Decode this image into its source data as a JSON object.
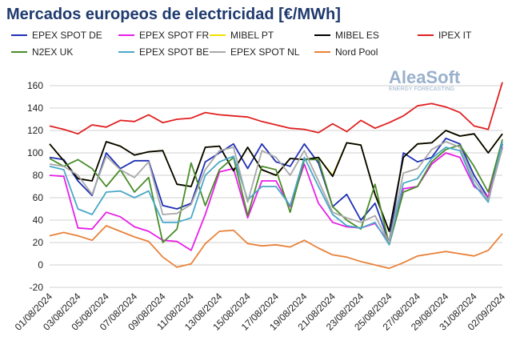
{
  "chart_data": {
    "type": "line",
    "title": "Mercados europeos de electricidad [€/MWh]",
    "logo": {
      "name": "AleaSoft",
      "tagline": "ENERGY FORECASTING"
    },
    "categories": [
      "01/08/2024",
      null,
      "03/08/2024",
      null,
      "05/08/2024",
      null,
      "07/08/2024",
      null,
      "09/08/2024",
      null,
      "11/08/2024",
      null,
      "13/08/2024",
      null,
      "15/08/2024",
      null,
      "17/08/2024",
      null,
      "19/08/2024",
      null,
      "21/08/2024",
      null,
      "23/08/2024",
      null,
      "25/08/2024",
      null,
      "27/08/2024",
      null,
      "29/08/2024",
      null,
      "31/08/2024",
      null,
      "02/09/2024"
    ],
    "ylim": [
      -20,
      170
    ],
    "yticks": [
      -20,
      0,
      20,
      40,
      60,
      80,
      100,
      120,
      140,
      160
    ],
    "grid": true,
    "series": [
      {
        "name": "EPEX SPOT DE",
        "color": "#1f2fb4",
        "values": [
          96,
          94,
          75,
          62,
          100,
          86,
          93,
          93,
          53,
          50,
          55,
          92,
          100,
          108,
          86,
          108,
          92,
          88,
          108,
          91,
          52,
          63,
          40,
          55,
          20,
          100,
          92,
          96,
          113,
          108,
          80,
          60,
          108
        ]
      },
      {
        "name": "EPEX SPOT FR",
        "color": "#e81ee8",
        "values": [
          80,
          79,
          33,
          32,
          47,
          43,
          34,
          30,
          22,
          21,
          13,
          45,
          83,
          86,
          42,
          75,
          75,
          52,
          90,
          55,
          38,
          34,
          33,
          37,
          20,
          68,
          70,
          90,
          100,
          96,
          70,
          61,
          105
        ]
      },
      {
        "name": "MIBEL PT",
        "color": "#f0e000",
        "values": [
          108,
          93,
          77,
          75,
          110,
          106,
          98,
          101,
          102,
          72,
          70,
          105,
          106,
          84,
          105,
          85,
          80,
          95,
          94,
          96,
          80,
          109,
          107,
          63,
          30,
          96,
          108,
          109,
          120,
          115,
          117,
          100,
          117
        ]
      },
      {
        "name": "MIBEL ES",
        "color": "#000000",
        "values": [
          108,
          93,
          77,
          75,
          110,
          106,
          98,
          101,
          102,
          72,
          70,
          105,
          106,
          84,
          105,
          85,
          80,
          95,
          94,
          96,
          79,
          109,
          107,
          63,
          30,
          96,
          108,
          109,
          120,
          115,
          117,
          100,
          117
        ]
      },
      {
        "name": "IPEX IT",
        "color": "#e02020",
        "values": [
          124,
          121,
          117,
          125,
          123,
          129,
          128,
          134,
          127,
          130,
          131,
          136,
          134,
          133,
          132,
          128,
          125,
          122,
          121,
          118,
          126,
          119,
          129,
          122,
          127,
          133,
          142,
          144,
          141,
          136,
          124,
          121,
          163
        ]
      },
      {
        "name": "N2EX UK",
        "color": "#4a8c2a",
        "values": [
          95,
          88,
          94,
          86,
          70,
          85,
          65,
          78,
          20,
          32,
          91,
          53,
          85,
          96,
          44,
          88,
          85,
          47,
          94,
          94,
          52,
          40,
          32,
          72,
          18,
          65,
          70,
          92,
          103,
          107,
          88,
          65,
          112
        ]
      },
      {
        "name": "EPEX SPOT BE",
        "color": "#4aa8c8",
        "values": [
          88,
          85,
          50,
          45,
          65,
          66,
          60,
          66,
          38,
          38,
          42,
          80,
          92,
          97,
          58,
          70,
          70,
          53,
          96,
          70,
          45,
          35,
          33,
          38,
          18,
          73,
          77,
          95,
          105,
          102,
          72,
          56,
          110
        ]
      },
      {
        "name": "EPEX SPOT NL",
        "color": "#a8a8a8",
        "values": [
          90,
          88,
          80,
          63,
          97,
          85,
          78,
          92,
          45,
          46,
          54,
          85,
          102,
          105,
          56,
          102,
          96,
          80,
          102,
          75,
          47,
          42,
          38,
          44,
          20,
          82,
          86,
          103,
          110,
          105,
          76,
          58,
          104
        ]
      },
      {
        "name": "Nord Pool",
        "color": "#e8823a",
        "values": [
          26,
          29,
          26,
          22,
          35,
          30,
          25,
          21,
          7,
          -2,
          1,
          19,
          30,
          31,
          19,
          17,
          18,
          16,
          22,
          15,
          9,
          7,
          3,
          0,
          -3,
          2,
          8,
          10,
          12,
          10,
          8,
          13,
          28
        ]
      }
    ]
  }
}
